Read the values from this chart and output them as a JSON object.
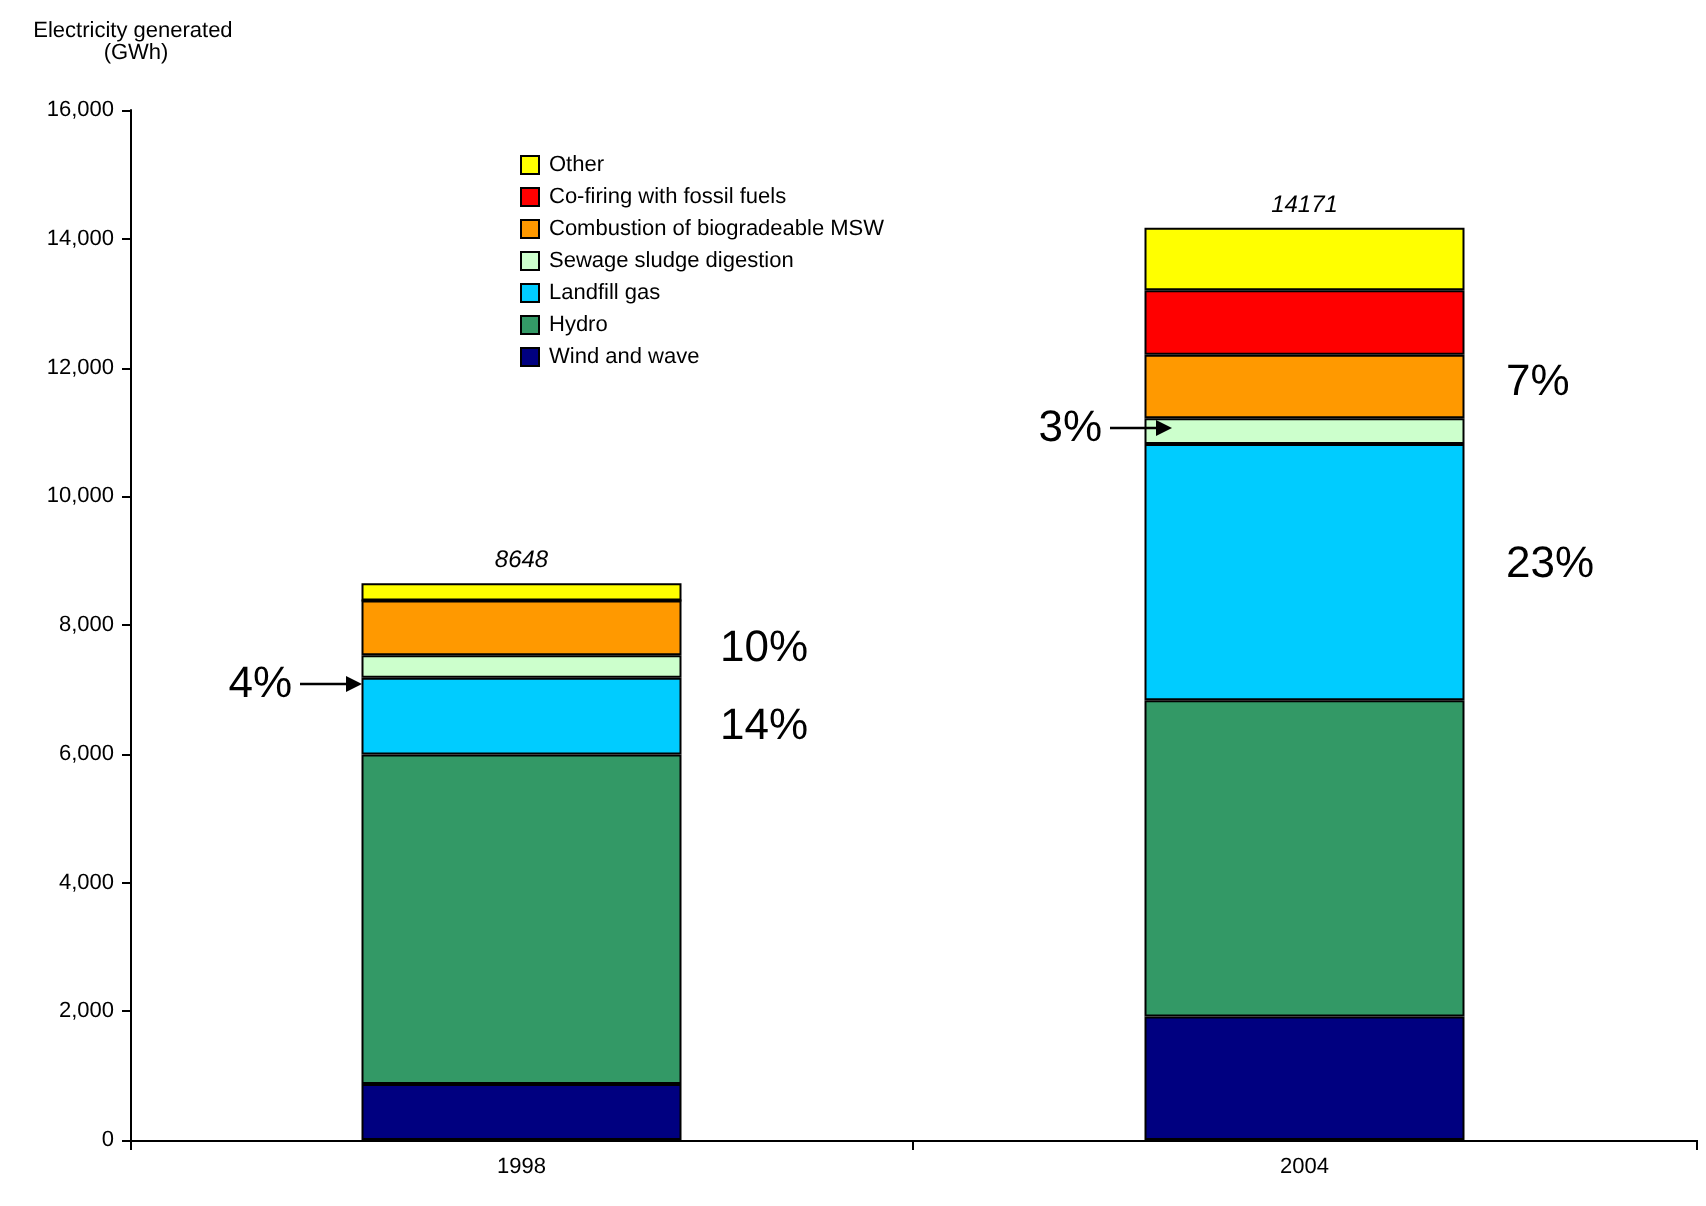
{
  "chart_data": {
    "type": "bar",
    "stacked": true,
    "ylabel": "Electricity generated (GWh)",
    "categories": [
      "1998",
      "2004"
    ],
    "series": [
      {
        "name": "Wind and wave",
        "color": "#000080",
        "values": [
          870,
          1920
        ]
      },
      {
        "name": "Hydro",
        "color": "#339966",
        "values": [
          5120,
          4910
        ]
      },
      {
        "name": "Landfill gas",
        "color": "#00ccff",
        "values": [
          1190,
          3980
        ]
      },
      {
        "name": "Sewage sludge digestion",
        "color": "#ccffcc",
        "values": [
          350,
          400
        ]
      },
      {
        "name": "Combustion of biogradeable MSW",
        "color": "#ff9900",
        "values": [
          850,
          990
        ]
      },
      {
        "name": "Co-firing with fossil fuels",
        "color": "#ff0000",
        "values": [
          0,
          1000
        ]
      },
      {
        "name": "Other",
        "color": "#ffff00",
        "values": [
          270,
          970
        ]
      }
    ],
    "totals": [
      "8648",
      "14171"
    ],
    "annotations": [
      "4%",
      "10%",
      "14%",
      "3%",
      "7%",
      "23%"
    ],
    "ylim": [
      0,
      16000
    ],
    "yticks": [
      {
        "value": 0,
        "label": "0"
      },
      {
        "value": 2000,
        "label": "2,000"
      },
      {
        "value": 4000,
        "label": "4,000"
      },
      {
        "value": 6000,
        "label": "6,000"
      },
      {
        "value": 8000,
        "label": "8,000"
      },
      {
        "value": 10000,
        "label": "10,000"
      },
      {
        "value": 12000,
        "label": "12,000"
      },
      {
        "value": 14000,
        "label": "14,000"
      },
      {
        "value": 16000,
        "label": "16,000"
      }
    ],
    "grid": false,
    "legend": "top left"
  }
}
